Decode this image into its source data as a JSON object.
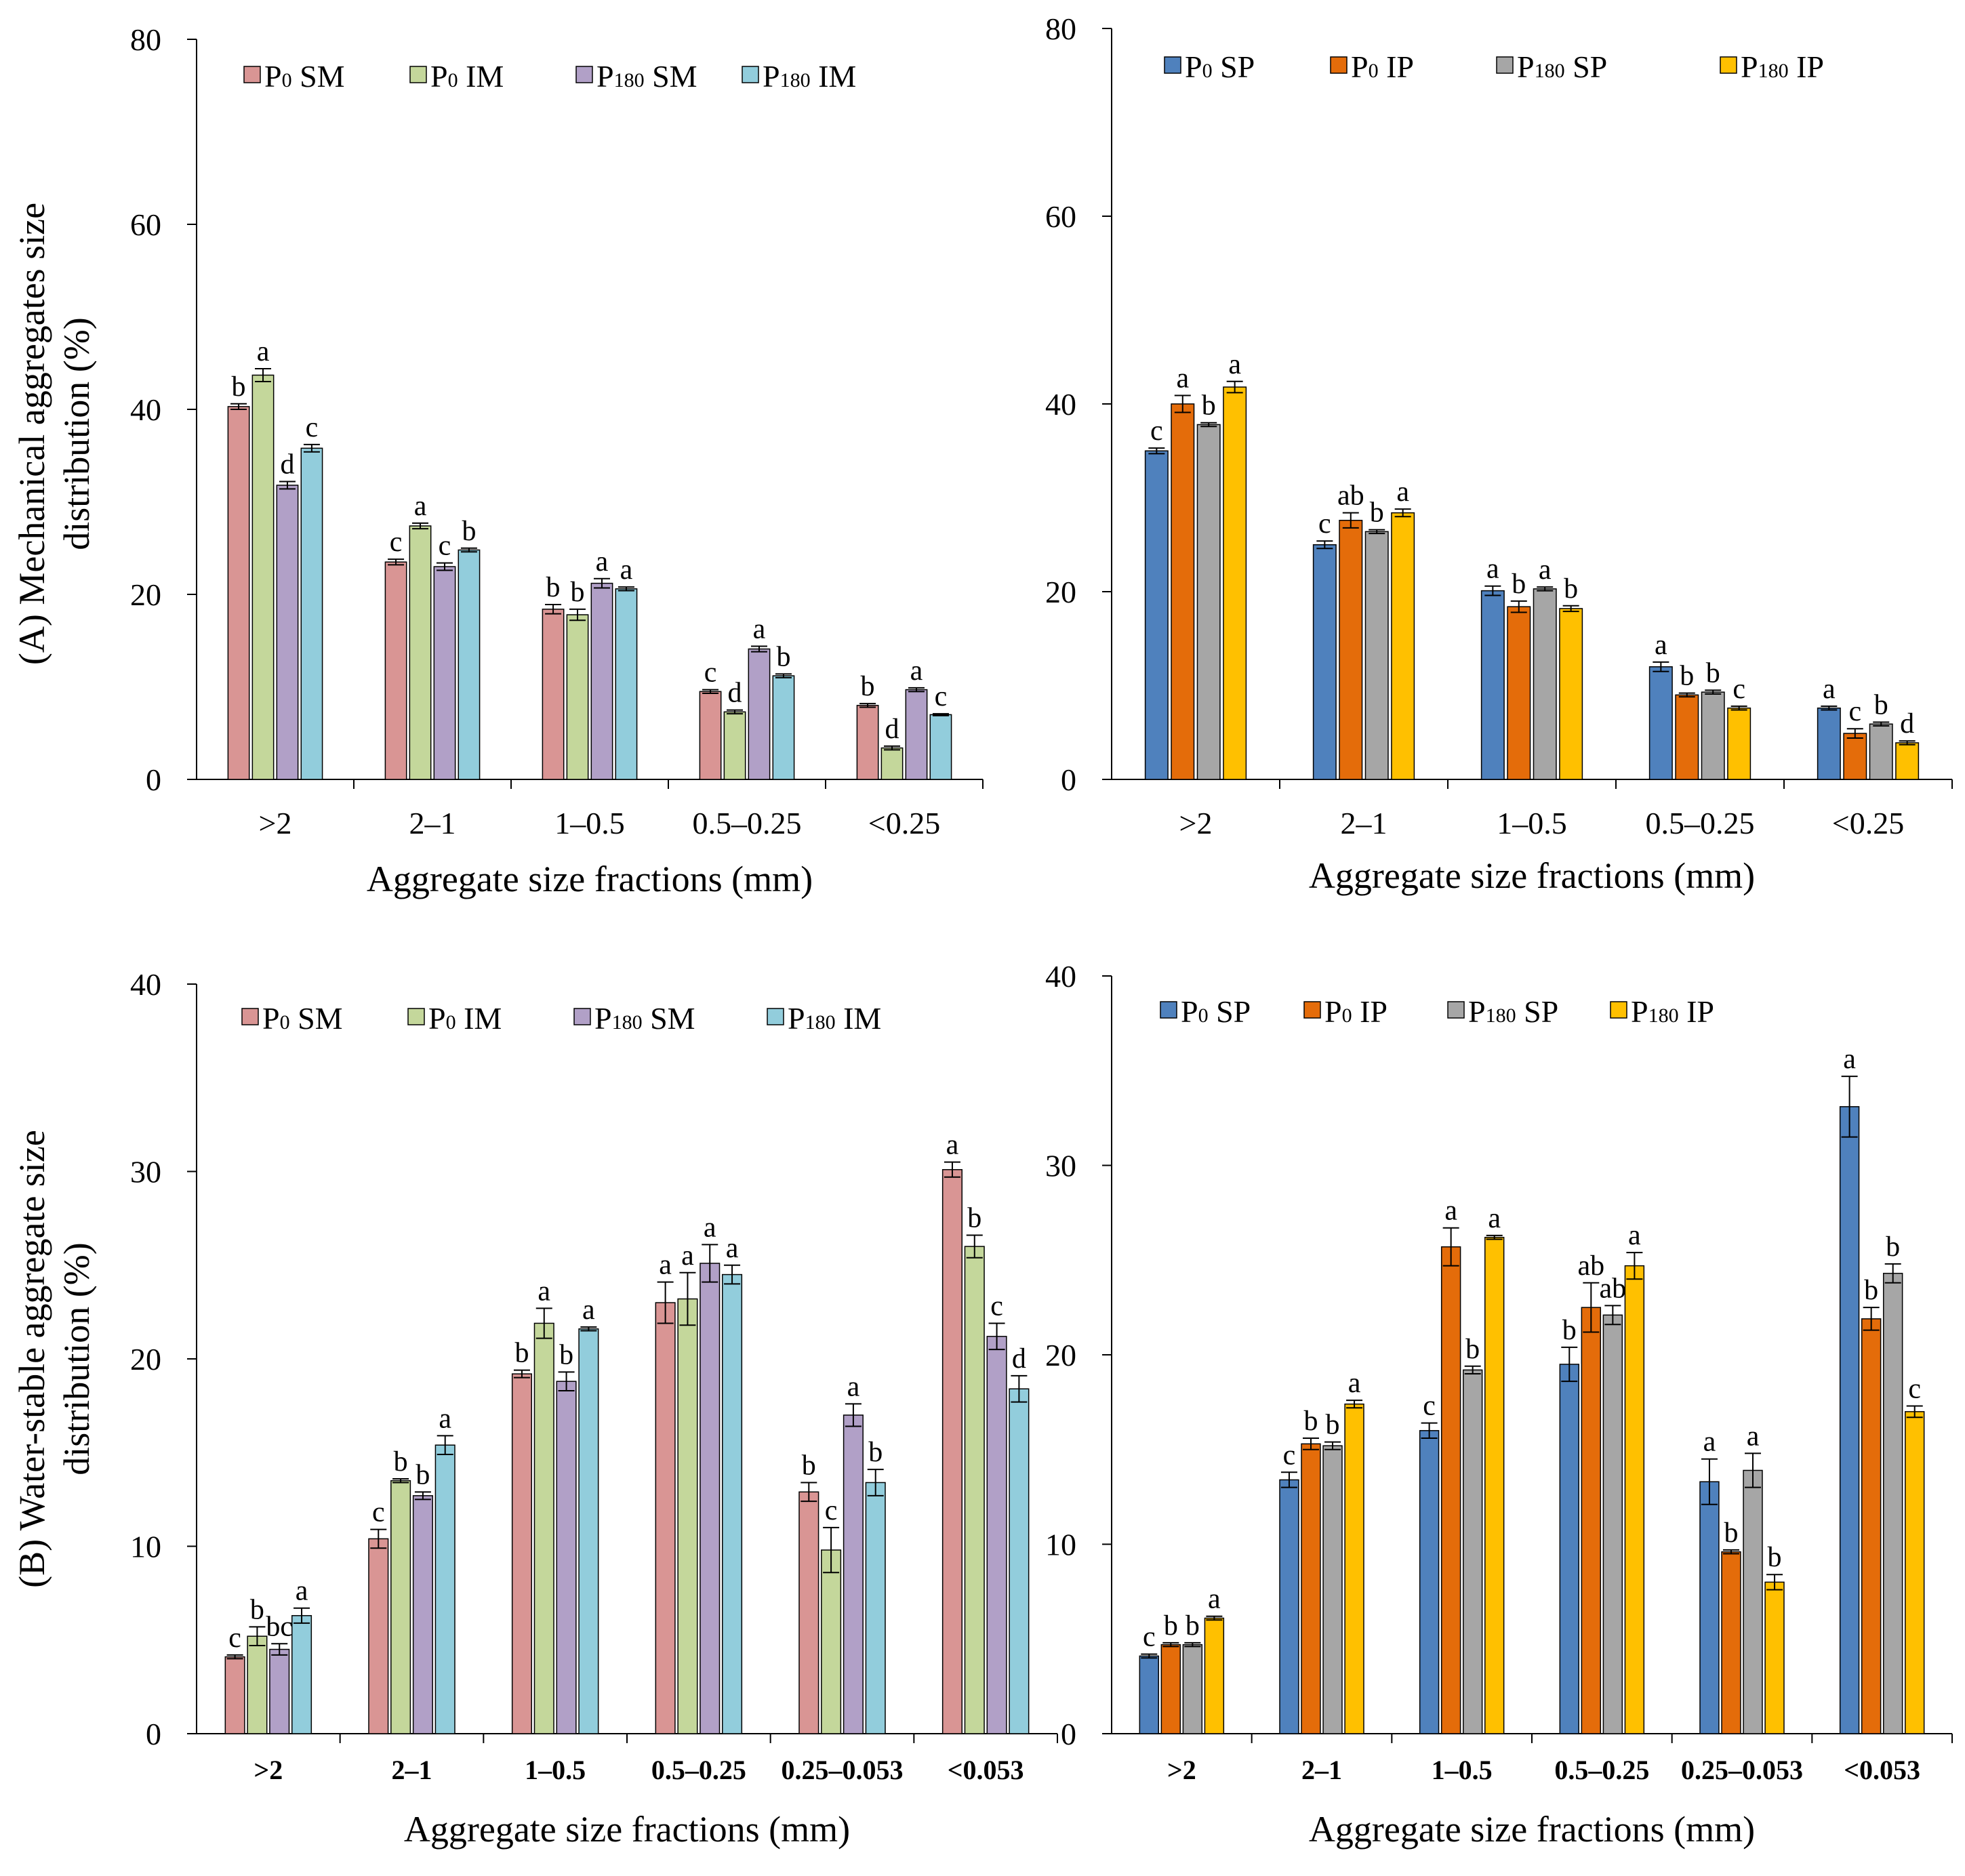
{
  "colors": {
    "p0_sm": "#d99594",
    "p0_im": "#c4d79b",
    "p180_sm": "#b1a0c7",
    "p180_im": "#92cddc",
    "p0_sp": "#4f81bd",
    "p0_ip": "#e46c0a",
    "p180_sp": "#a6a6a6",
    "p180_ip": "#ffc000"
  },
  "chart_data": [
    {
      "id": "mech-mulch",
      "type": "bar",
      "ylabel_lines": [
        "(A) Mechanical aggregates size",
        "distribution (%)"
      ],
      "xlabel": "Aggregate size fractions (mm)",
      "ylim": [
        0,
        80
      ],
      "yticks": [
        "0",
        "20",
        "40",
        "60",
        "80"
      ],
      "categories": [
        ">2",
        "2–1",
        "1–0.5",
        "0.5–0.25",
        "<0.25"
      ],
      "tick_bold": false,
      "series": [
        {
          "name": "P0 SM",
          "label_main": "P",
          "label_sub": "0",
          "label_rest": " SM",
          "color": "#d99594",
          "values": [
            40.3,
            23.5,
            18.4,
            9.5,
            8.0
          ],
          "errors": [
            0.3,
            0.3,
            0.5,
            0.2,
            0.2
          ],
          "letters": [
            "b",
            "c",
            "b",
            "c",
            "b"
          ]
        },
        {
          "name": "P0 IM",
          "label_main": "P",
          "label_sub": "0",
          "label_rest": " IM",
          "color": "#c4d79b",
          "values": [
            43.7,
            27.4,
            17.8,
            7.3,
            3.4
          ],
          "errors": [
            0.7,
            0.3,
            0.6,
            0.2,
            0.2
          ],
          "letters": [
            "a",
            "a",
            "b",
            "d",
            "d"
          ]
        },
        {
          "name": "P180 SM",
          "label_main": "P",
          "label_sub": "180",
          "label_rest": " SM",
          "color": "#b1a0c7",
          "values": [
            31.8,
            23.0,
            21.2,
            14.1,
            9.7
          ],
          "errors": [
            0.4,
            0.4,
            0.5,
            0.3,
            0.2
          ],
          "letters": [
            "d",
            "c",
            "a",
            "a",
            "a"
          ]
        },
        {
          "name": "P180 IM",
          "label_main": "P",
          "label_sub": "180",
          "label_rest": " IM",
          "color": "#92cddc",
          "values": [
            35.8,
            24.8,
            20.6,
            11.2,
            7.0
          ],
          "errors": [
            0.4,
            0.2,
            0.2,
            0.2,
            0.1
          ],
          "letters": [
            "c",
            "b",
            "a",
            "b",
            "c"
          ]
        }
      ]
    },
    {
      "id": "mech-plastic",
      "type": "bar",
      "ylabel_lines": [],
      "xlabel": "Aggregate size fractions (mm)",
      "ylim": [
        0,
        80
      ],
      "yticks": [
        "0",
        "20",
        "40",
        "60",
        "80"
      ],
      "categories": [
        ">2",
        "2–1",
        "1–0.5",
        "0.5–0.25",
        "<0.25"
      ],
      "tick_bold": false,
      "series": [
        {
          "name": "P0 SP",
          "label_main": "P",
          "label_sub": "0",
          "label_rest": " SP",
          "color": "#4f81bd",
          "values": [
            35.0,
            25.0,
            20.1,
            12.0,
            7.6
          ],
          "errors": [
            0.3,
            0.4,
            0.5,
            0.5,
            0.2
          ],
          "letters": [
            "c",
            "c",
            "a",
            "a",
            "a"
          ]
        },
        {
          "name": "P0 IP",
          "label_main": "P",
          "label_sub": "0",
          "label_rest": " IP",
          "color": "#e46c0a",
          "values": [
            40.0,
            27.6,
            18.4,
            9.0,
            4.9
          ],
          "errors": [
            0.9,
            0.8,
            0.6,
            0.2,
            0.5
          ],
          "letters": [
            "a",
            "ab",
            "b",
            "b",
            "c"
          ]
        },
        {
          "name": "P180 SP",
          "label_main": "P",
          "label_sub": "180",
          "label_rest": " SP",
          "color": "#a6a6a6",
          "values": [
            37.8,
            26.4,
            20.3,
            9.3,
            5.9
          ],
          "errors": [
            0.2,
            0.2,
            0.2,
            0.2,
            0.2
          ],
          "letters": [
            "b",
            "b",
            "a",
            "b",
            "b"
          ]
        },
        {
          "name": "P180 IP",
          "label_main": "P",
          "label_sub": "180",
          "label_rest": " IP",
          "color": "#ffc000",
          "values": [
            41.8,
            28.4,
            18.2,
            7.6,
            3.9
          ],
          "errors": [
            0.6,
            0.4,
            0.3,
            0.2,
            0.2
          ],
          "letters": [
            "a",
            "a",
            "b",
            "c",
            "d"
          ]
        }
      ]
    },
    {
      "id": "water-mulch",
      "type": "bar",
      "ylabel_lines": [
        "(B) Water-stable aggregate size",
        "distribution (%)"
      ],
      "xlabel": "Aggregate size fractions (mm)",
      "ylim": [
        0,
        40
      ],
      "yticks": [
        "0",
        "10",
        "20",
        "30",
        "40"
      ],
      "categories": [
        ">2",
        "2–1",
        "1–0.5",
        "0.5–0.25",
        "0.25–0.053",
        "<0.053"
      ],
      "tick_bold": true,
      "series": [
        {
          "name": "P0 SM",
          "label_main": "P",
          "label_sub": "0",
          "label_rest": " SM",
          "color": "#d99594",
          "values": [
            4.1,
            10.4,
            19.2,
            23.0,
            12.9,
            30.1
          ],
          "errors": [
            0.1,
            0.5,
            0.2,
            1.1,
            0.5,
            0.4
          ],
          "letters": [
            "c",
            "c",
            "b",
            "a",
            "b",
            "a"
          ]
        },
        {
          "name": "P0 IM",
          "label_main": "P",
          "label_sub": "0",
          "label_rest": " IM",
          "color": "#c4d79b",
          "values": [
            5.2,
            13.5,
            21.9,
            23.2,
            9.8,
            26.0
          ],
          "errors": [
            0.5,
            0.1,
            0.8,
            1.4,
            1.2,
            0.6
          ],
          "letters": [
            "b",
            "b",
            "a",
            "a",
            "c",
            "b"
          ]
        },
        {
          "name": "P180 SM",
          "label_main": "P",
          "label_sub": "180",
          "label_rest": " SM",
          "color": "#b1a0c7",
          "values": [
            4.5,
            12.7,
            18.8,
            25.1,
            17.0,
            21.2
          ],
          "errors": [
            0.3,
            0.2,
            0.5,
            1.0,
            0.6,
            0.7
          ],
          "letters": [
            "bc",
            "b",
            "b",
            "a",
            "a",
            "c"
          ]
        },
        {
          "name": "P180 IM",
          "label_main": "P",
          "label_sub": "180",
          "label_rest": " IM",
          "color": "#92cddc",
          "values": [
            6.3,
            15.4,
            21.6,
            24.5,
            13.4,
            18.4
          ],
          "errors": [
            0.4,
            0.5,
            0.1,
            0.5,
            0.7,
            0.7
          ],
          "letters": [
            "a",
            "a",
            "a",
            "a",
            "b",
            "d"
          ]
        }
      ]
    },
    {
      "id": "water-plastic",
      "type": "bar",
      "ylabel_lines": [],
      "xlabel": "Aggregate size fractions (mm)",
      "ylim": [
        0,
        40
      ],
      "yticks": [
        "0",
        "10",
        "20",
        "30",
        "40"
      ],
      "categories": [
        ">2",
        "2–1",
        "1–0.5",
        "0.5–0.25",
        "0.25–0.053",
        "<0.053"
      ],
      "tick_bold": true,
      "series": [
        {
          "name": "P0 SP",
          "label_main": "P",
          "label_sub": "0",
          "label_rest": " SP",
          "color": "#4f81bd",
          "values": [
            4.1,
            13.4,
            16.0,
            19.5,
            13.3,
            33.1
          ],
          "errors": [
            0.1,
            0.4,
            0.4,
            0.9,
            1.2,
            1.6
          ],
          "letters": [
            "c",
            "c",
            "c",
            "b",
            "a",
            "a"
          ]
        },
        {
          "name": "P0 IP",
          "label_main": "P",
          "label_sub": "0",
          "label_rest": " IP",
          "color": "#e46c0a",
          "values": [
            4.7,
            15.3,
            25.7,
            22.5,
            9.6,
            21.9
          ],
          "errors": [
            0.1,
            0.3,
            1.0,
            1.3,
            0.1,
            0.6
          ],
          "letters": [
            "b",
            "b",
            "a",
            "ab",
            "b",
            "b"
          ]
        },
        {
          "name": "P180 SP",
          "label_main": "P",
          "label_sub": "180",
          "label_rest": " SP",
          "color": "#a6a6a6",
          "values": [
            4.7,
            15.2,
            19.2,
            22.1,
            13.9,
            24.3
          ],
          "errors": [
            0.1,
            0.2,
            0.2,
            0.5,
            0.9,
            0.5
          ],
          "letters": [
            "b",
            "b",
            "b",
            "ab",
            "a",
            "b"
          ]
        },
        {
          "name": "P180 IP",
          "label_main": "P",
          "label_sub": "180",
          "label_rest": " IP",
          "color": "#ffc000",
          "values": [
            6.1,
            17.4,
            26.2,
            24.7,
            8.0,
            17.0
          ],
          "errors": [
            0.1,
            0.2,
            0.1,
            0.7,
            0.4,
            0.3
          ],
          "letters": [
            "a",
            "a",
            "a",
            "a",
            "b",
            "c"
          ]
        }
      ]
    }
  ]
}
